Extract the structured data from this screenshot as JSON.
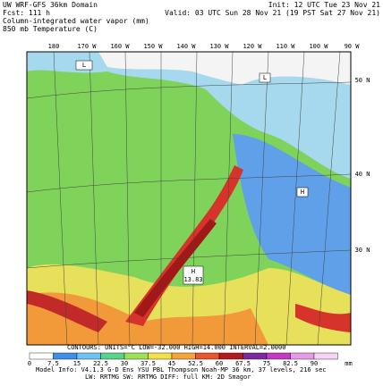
{
  "header": {
    "left": [
      "UW WRF-GFS 36km Domain",
      "Fcst: 111 h",
      "Column-integrated water vapor (mm)",
      "850 mb Temperature (C)"
    ],
    "right": [
      "Init: 12 UTC Tue 23 Nov 21",
      "Valid: 03 UTC Sun 28 Nov 21 (19 PST Sat 27 Nov 21)"
    ]
  },
  "map": {
    "lon_labels": [
      "180",
      "170 W",
      "160 W",
      "150 W",
      "140 W",
      "130 W",
      "120 W",
      "110 W",
      "100 W",
      "90 W"
    ],
    "lat_labels": [
      "50 N",
      "40 N",
      "30 N"
    ],
    "markers": [
      {
        "label": "L"
      },
      {
        "label": "L"
      },
      {
        "label": "H",
        "value": "13.83"
      },
      {
        "label": "H"
      }
    ]
  },
  "footer": {
    "contours": "CONTOURS: UNITS=°C  LOW=-32.000  HIGH=14.000  INTERVAL=2.0000",
    "colorbar_labels": [
      "0",
      "7.5",
      "15",
      "22.5",
      "30",
      "37.5",
      "45",
      "52.5",
      "60",
      "67.5",
      "75",
      "82.5",
      "90",
      "mm"
    ],
    "model_info": [
      "Model Info: V4.1.3   G-D Ens YSU PBL   Thompson   Noah-MP   36 km, 37 levels, 216 sec",
      "LW: RRTMG   SW: RRTMG   DIFF: full   KM: 2D Smagor"
    ]
  }
}
